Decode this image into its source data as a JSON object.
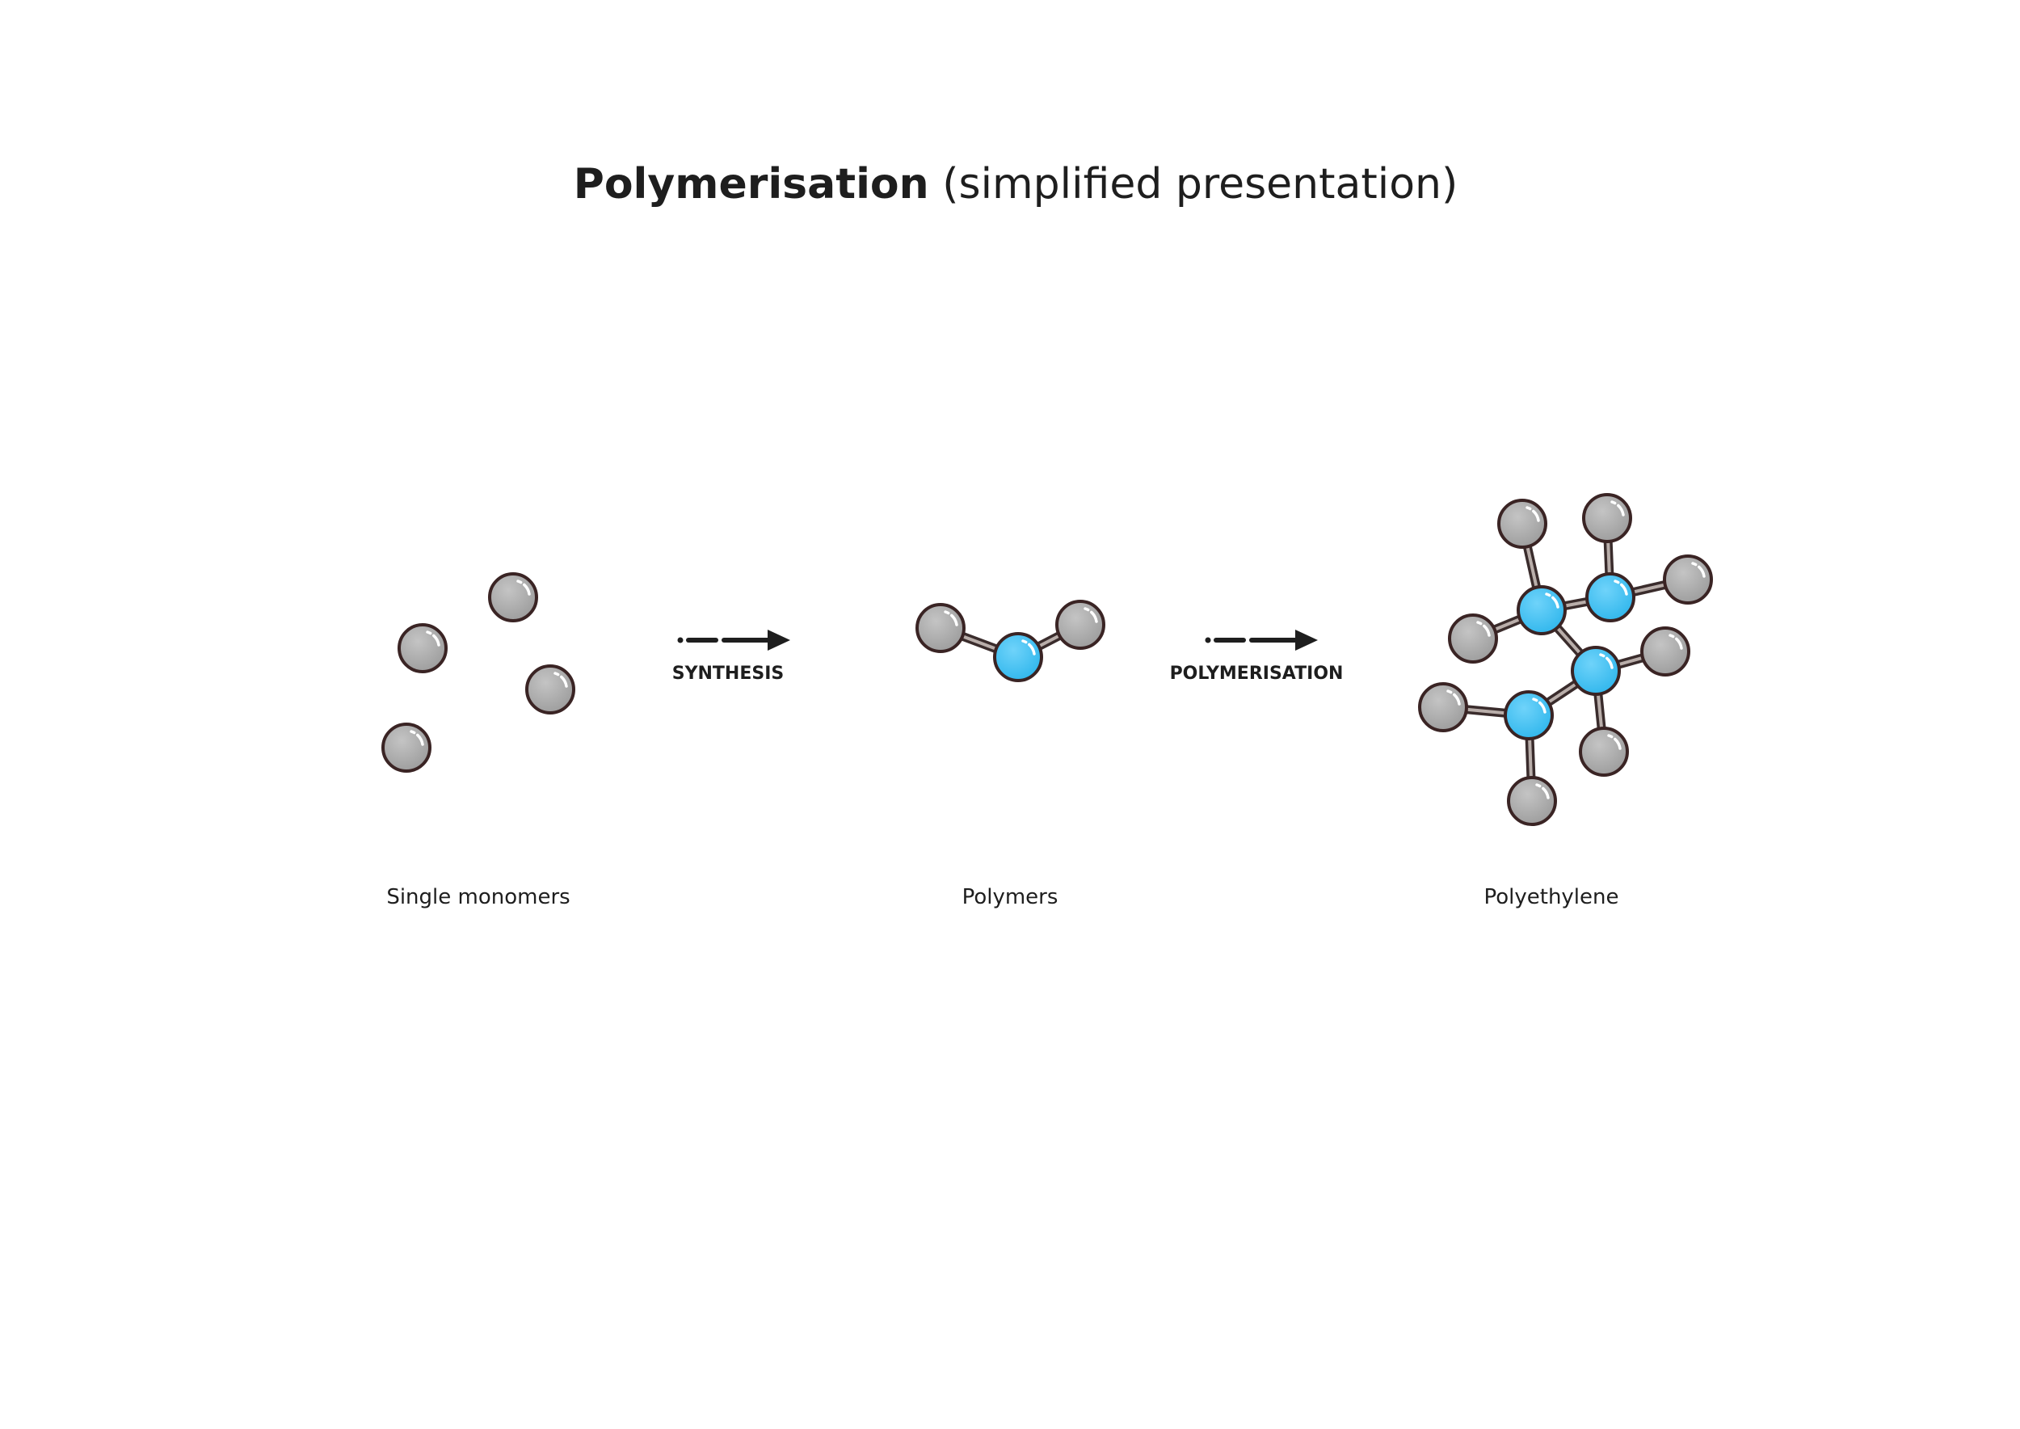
{
  "title": {
    "bold": "Polymerisation",
    "rest": "(simplified presentation)"
  },
  "steps": [
    {
      "arrow_label": "SYNTHESIS"
    },
    {
      "arrow_label": "POLYMERISATION"
    }
  ],
  "stages": [
    {
      "caption": "Single monomers"
    },
    {
      "caption": "Polymers"
    },
    {
      "caption": "Polyethylene"
    }
  ]
}
